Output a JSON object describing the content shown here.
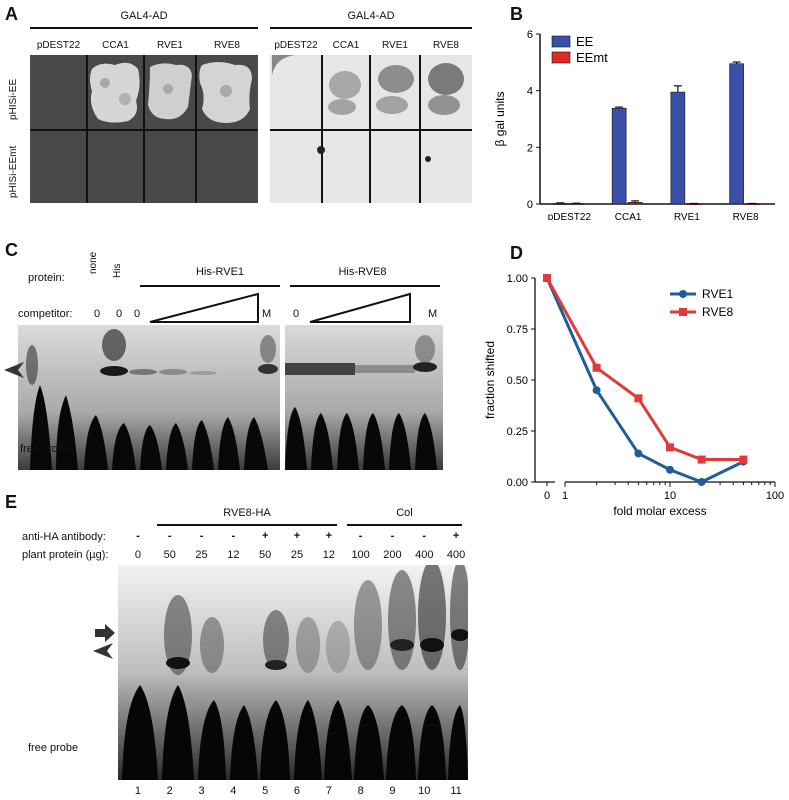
{
  "panels": {
    "A": {
      "letter": "A",
      "header_left": "GAL4-AD",
      "header_right": "GAL4-AD",
      "columns": [
        "pDEST22",
        "CCA1",
        "RVE1",
        "RVE8"
      ],
      "rows": [
        "pHISi-EE",
        "pHISi-EEmt"
      ]
    },
    "B": {
      "letter": "B"
    },
    "C": {
      "letter": "C",
      "protein_label": "protein:",
      "competitor_label": "competitor:",
      "none_label": "none",
      "his_label": "His",
      "rve1_label": "His-RVE1",
      "rve8_label": "His-RVE8",
      "zero_label": "0",
      "m_label": "M",
      "free_probe": "free probe"
    },
    "D": {
      "letter": "D"
    },
    "E": {
      "letter": "E",
      "rve8ha_label": "RVE8-HA",
      "col_label": "Col",
      "antibody_label": "anti-HA antibody:",
      "plant_protein_label": "plant protein (µg):",
      "antibody_marks": [
        "-",
        "-",
        "-",
        "-",
        "+",
        "+",
        "+",
        "-",
        "-",
        "-",
        "+"
      ],
      "amounts": [
        "0",
        "50",
        "25",
        "12",
        "50",
        "25",
        "12",
        "100",
        "200",
        "400",
        "400"
      ],
      "lanes": [
        "1",
        "2",
        "3",
        "4",
        "5",
        "6",
        "7",
        "8",
        "9",
        "10",
        "11"
      ],
      "free_probe": "free probe"
    }
  },
  "chart_data": [
    {
      "type": "bar",
      "panel": "B",
      "categories": [
        "pDEST22",
        "CCA1",
        "RVE1",
        "RVE8"
      ],
      "series": [
        {
          "name": "EE",
          "values": [
            0.02,
            3.38,
            3.95,
            4.95
          ],
          "errors": [
            0.02,
            0.04,
            0.22,
            0.06
          ],
          "color": "#3a4fa8"
        },
        {
          "name": "EEmt",
          "values": [
            0.02,
            0.06,
            0.01,
            0.01
          ],
          "errors": [
            0.01,
            0.05,
            0.01,
            0.01
          ],
          "color": "#e02a2a"
        }
      ],
      "ylabel": "β gal units",
      "ylim": [
        0,
        6
      ],
      "yticks": [
        "0",
        "2",
        "4",
        "6"
      ],
      "legend": "top-left"
    },
    {
      "type": "line",
      "panel": "D",
      "x": [
        0,
        2,
        5,
        10,
        20,
        50
      ],
      "series": [
        {
          "name": "RVE1",
          "values": [
            1.0,
            0.45,
            0.14,
            0.06,
            0.0,
            0.1
          ],
          "color": "#1f5f99"
        },
        {
          "name": "RVE8",
          "values": [
            1.0,
            0.56,
            0.41,
            0.17,
            0.11,
            0.11
          ],
          "color": "#e03a3a"
        }
      ],
      "xlabel": "fold molar excess",
      "ylabel": "fraction shifted",
      "ylim": [
        0,
        1
      ],
      "yticks": [
        "0.00",
        "0.25",
        "0.50",
        "0.75",
        "1.00"
      ],
      "xticks": [
        "0",
        "1",
        "10",
        "100"
      ],
      "xscale": "log (broken axis with 0)",
      "legend": "top-right"
    }
  ]
}
